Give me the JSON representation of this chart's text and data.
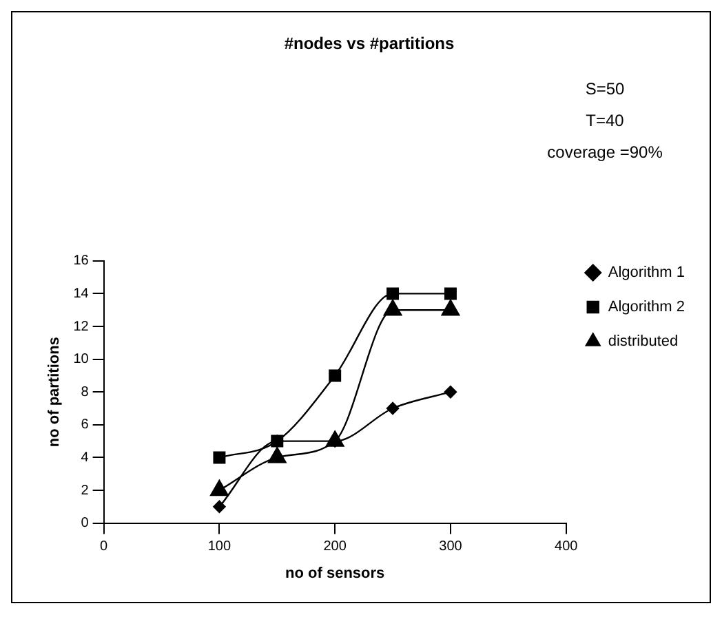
{
  "chart_data": {
    "type": "line",
    "title": "#nodes vs #partitions",
    "xlabel": "no of sensors",
    "ylabel": "no of partitions",
    "annotations": [
      "S=50",
      "T=40",
      "coverage =90%"
    ],
    "x": [
      100,
      150,
      200,
      250,
      300
    ],
    "series": [
      {
        "name": "Algorithm 1",
        "color": "#000000",
        "marker": "diamond",
        "values": [
          1,
          5,
          5,
          7,
          8
        ]
      },
      {
        "name": "Algorithm 2",
        "color": "#000000",
        "marker": "square",
        "values": [
          4,
          5,
          9,
          14,
          14
        ]
      },
      {
        "name": "distributed",
        "color": "#000000",
        "marker": "triangle",
        "values": [
          2,
          4,
          5,
          13,
          13
        ]
      }
    ],
    "xlim": [
      0,
      400
    ],
    "xticks": [
      0,
      100,
      200,
      300,
      400
    ],
    "ylim": [
      0,
      16
    ],
    "yticks": [
      0,
      2,
      4,
      6,
      8,
      10,
      12,
      14,
      16
    ],
    "grid": false,
    "legend": "right",
    "line_style": "solid"
  }
}
